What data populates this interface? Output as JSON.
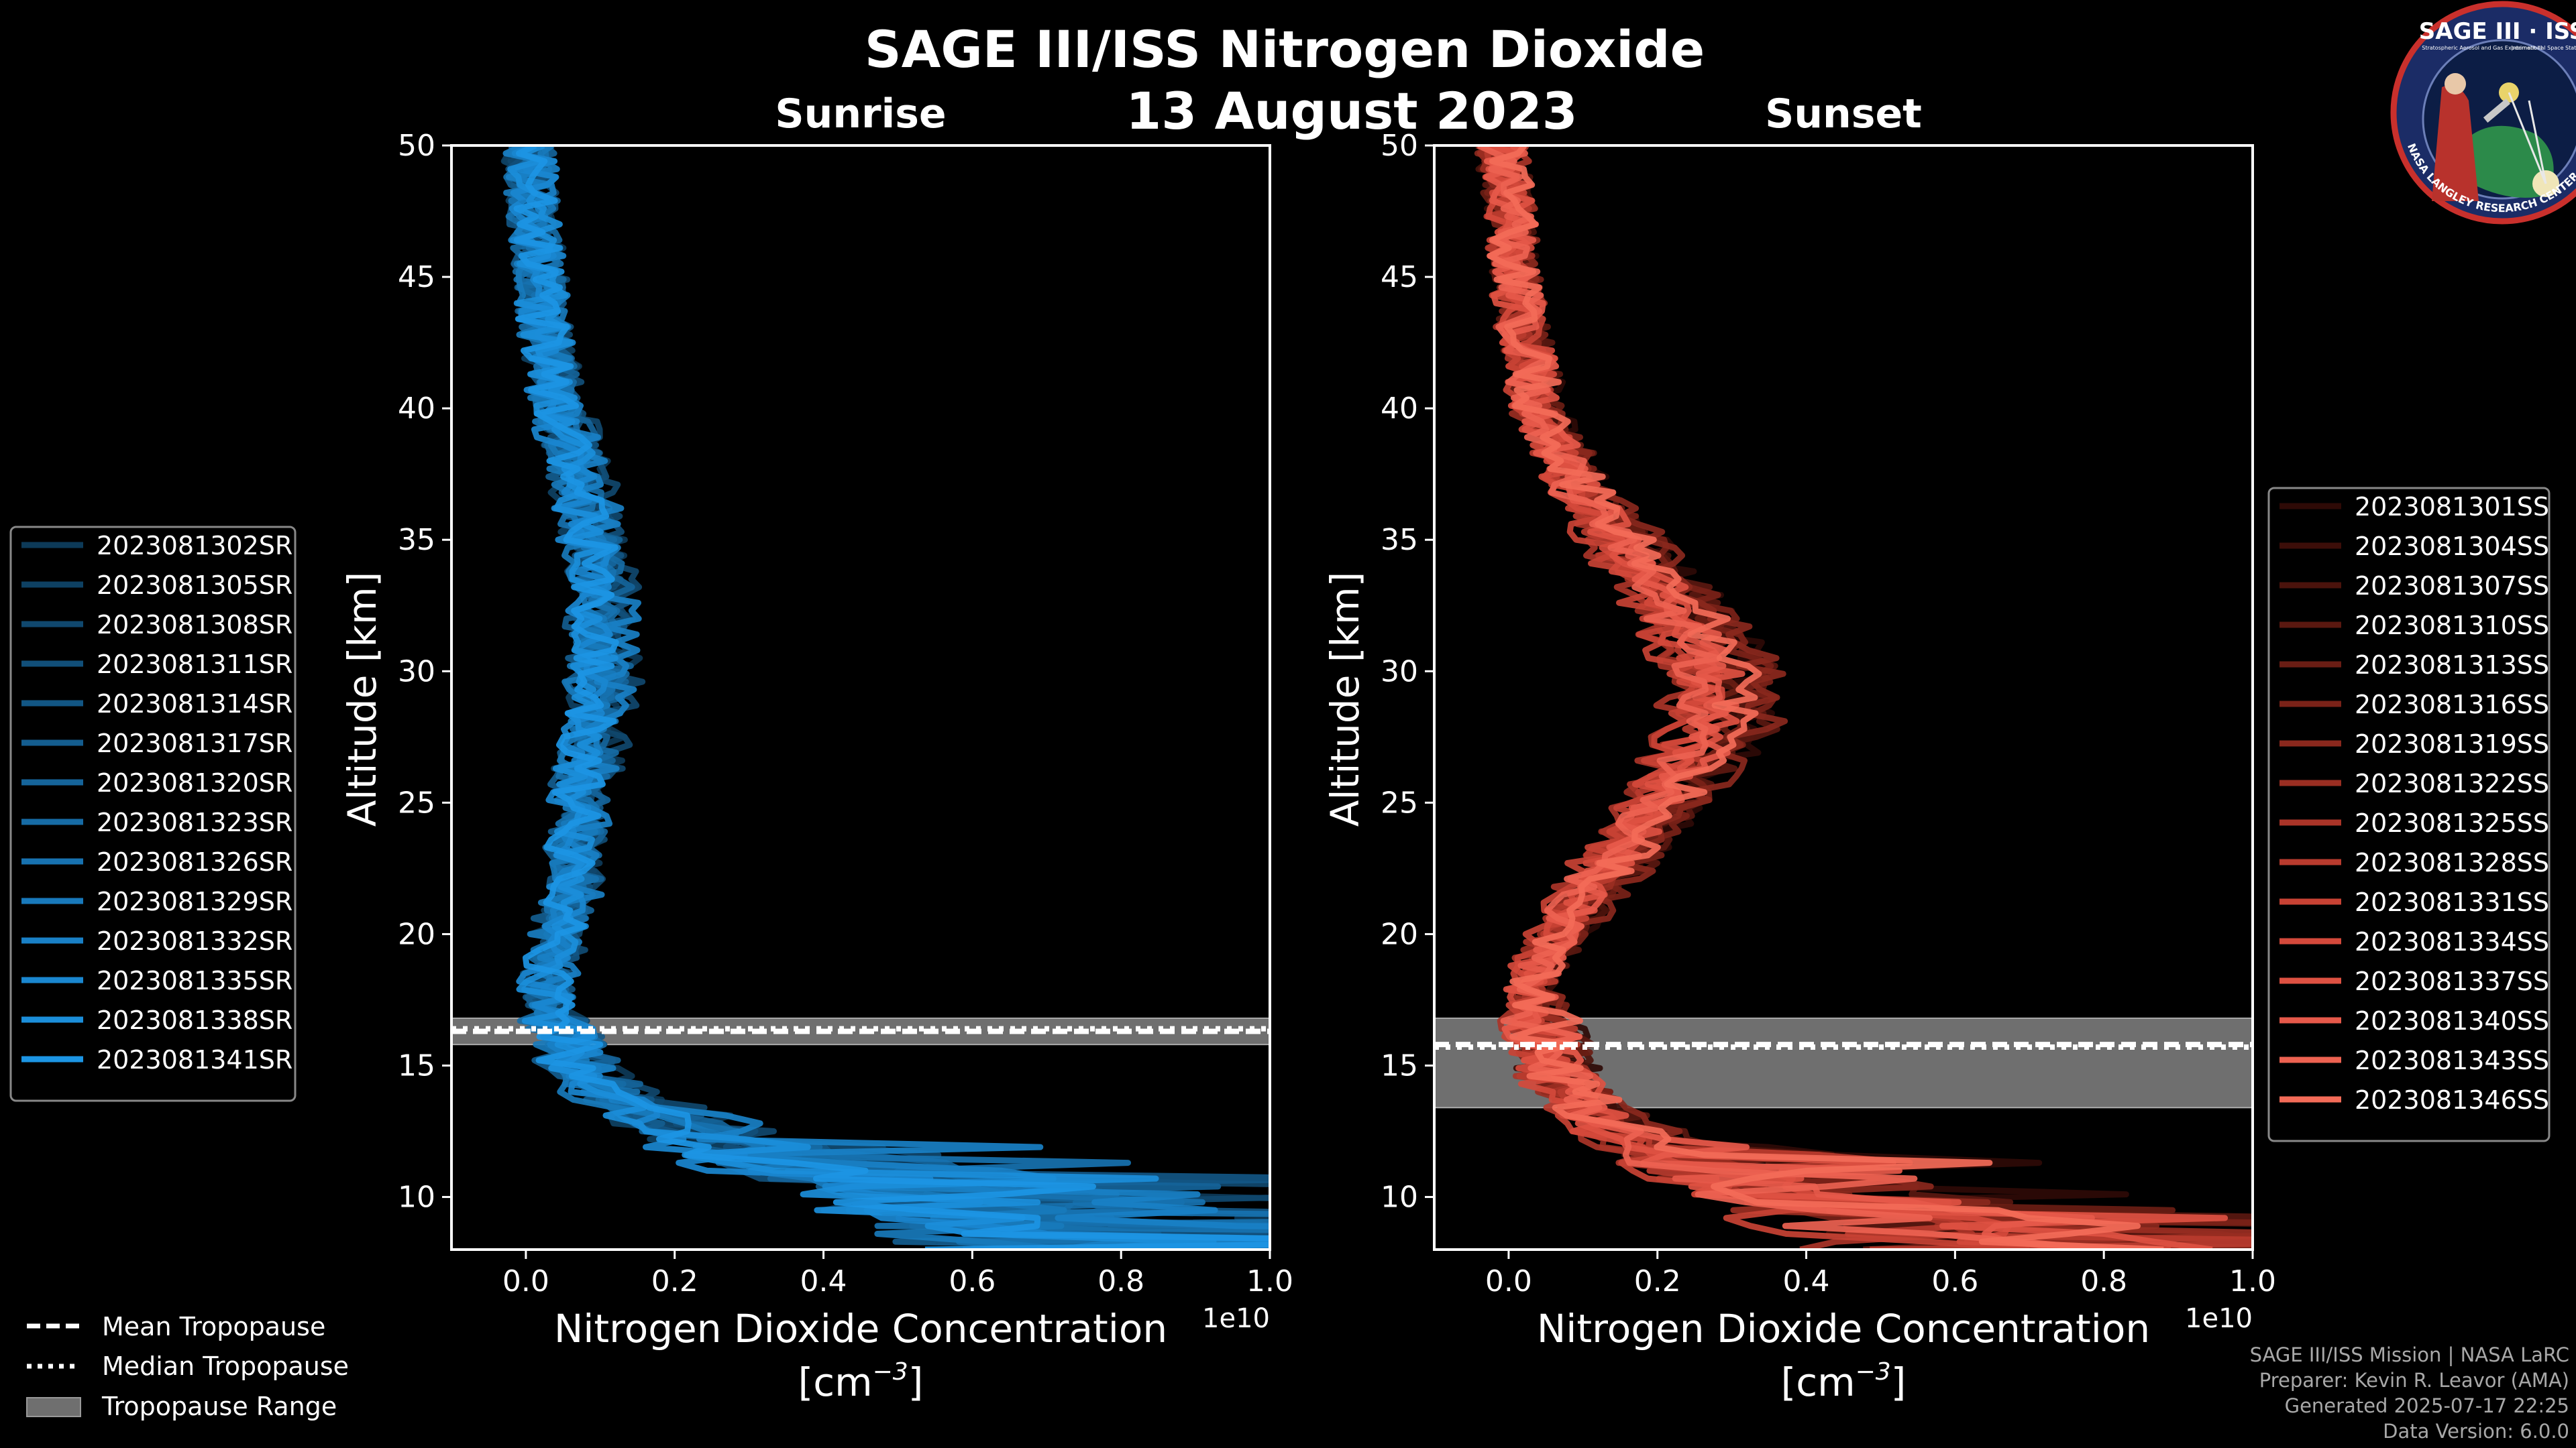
{
  "title": "SAGE III/ISS Nitrogen Dioxide",
  "date": "13 August 2023",
  "logo": {
    "top_text": "SAGE III · ISS",
    "small_left": "Stratospheric Aerosol and Gas Experiment III",
    "small_right": "International Space Station",
    "ring_text": "BALL · NASA LANGLEY RESEARCH CENTER · TAS-I · ESA"
  },
  "chart_data": [
    {
      "id": "sunrise",
      "type": "line",
      "title": "Sunrise",
      "xlabel": "Nitrogen Dioxide Concentration",
      "xlabel_units": "[cm",
      "xlabel_exp": "−3",
      "xlabel_close": "]",
      "ylabel": "Altitude [km]",
      "xlim": [
        -0.1,
        1.0
      ],
      "ylim": [
        8,
        50
      ],
      "x_scale_label": "1e10",
      "xticks": [
        0.0,
        0.2,
        0.4,
        0.6,
        0.8,
        1.0
      ],
      "xtick_labels": [
        "0.0",
        "0.2",
        "0.4",
        "0.6",
        "0.8",
        "1.0"
      ],
      "yticks": [
        10,
        15,
        20,
        25,
        30,
        35,
        40,
        45,
        50
      ],
      "ytick_labels": [
        "10",
        "15",
        "20",
        "25",
        "30",
        "35",
        "40",
        "45",
        "50"
      ],
      "base_profile": {
        "alt": [
          8,
          9,
          10,
          11,
          12,
          13,
          14,
          15,
          16,
          17,
          18,
          19,
          20,
          22,
          25,
          28,
          30,
          33,
          35,
          38,
          40,
          43,
          45,
          48,
          50
        ],
        "value": [
          0.9,
          0.8,
          0.6,
          0.45,
          0.3,
          0.2,
          0.12,
          0.08,
          0.06,
          0.04,
          0.03,
          0.04,
          0.05,
          0.07,
          0.08,
          0.1,
          0.11,
          0.11,
          0.1,
          0.07,
          0.05,
          0.03,
          0.02,
          0.01,
          0.005
        ]
      },
      "tropopause": {
        "mean": 16.3,
        "median": 16.4,
        "range": [
          15.8,
          16.8
        ]
      },
      "legend": {
        "position": "left",
        "series": [
          {
            "name": "2023081302SR",
            "color": "#0d3a58"
          },
          {
            "name": "2023081305SR",
            "color": "#0e4163"
          },
          {
            "name": "2023081308SR",
            "color": "#10486e"
          },
          {
            "name": "2023081311SR",
            "color": "#114f79"
          },
          {
            "name": "2023081314SR",
            "color": "#125684"
          },
          {
            "name": "2023081317SR",
            "color": "#145d8f"
          },
          {
            "name": "2023081320SR",
            "color": "#15649a"
          },
          {
            "name": "2023081323SR",
            "color": "#166ba5"
          },
          {
            "name": "2023081326SR",
            "color": "#1772b0"
          },
          {
            "name": "2023081329SR",
            "color": "#1879bb"
          },
          {
            "name": "2023081332SR",
            "color": "#1980c6"
          },
          {
            "name": "2023081335SR",
            "color": "#1a87d0"
          },
          {
            "name": "2023081338SR",
            "color": "#1b8eda"
          },
          {
            "name": "2023081341SR",
            "color": "#1c95e4"
          }
        ]
      }
    },
    {
      "id": "sunset",
      "type": "line",
      "title": "Sunset",
      "xlabel": "Nitrogen Dioxide Concentration",
      "xlabel_units": "[cm",
      "xlabel_exp": "−3",
      "xlabel_close": "]",
      "ylabel": "Altitude [km]",
      "xlim": [
        -0.1,
        1.0
      ],
      "ylim": [
        8,
        50
      ],
      "x_scale_label": "1e10",
      "xticks": [
        0.0,
        0.2,
        0.4,
        0.6,
        0.8,
        1.0
      ],
      "xtick_labels": [
        "0.0",
        "0.2",
        "0.4",
        "0.6",
        "0.8",
        "1.0"
      ],
      "yticks": [
        10,
        15,
        20,
        25,
        30,
        35,
        40,
        45,
        50
      ],
      "ytick_labels": [
        "10",
        "15",
        "20",
        "25",
        "30",
        "35",
        "40",
        "45",
        "50"
      ],
      "base_profile": {
        "alt": [
          8,
          9,
          10,
          11,
          12,
          13,
          14,
          15,
          16,
          17,
          18,
          19,
          20,
          22,
          25,
          27,
          28,
          30,
          32,
          35,
          37,
          40,
          43,
          45,
          48,
          50
        ],
        "value": [
          0.7,
          0.55,
          0.4,
          0.28,
          0.18,
          0.12,
          0.08,
          0.06,
          0.05,
          0.04,
          0.03,
          0.04,
          0.07,
          0.12,
          0.2,
          0.26,
          0.28,
          0.28,
          0.24,
          0.15,
          0.09,
          0.04,
          0.02,
          0.01,
          0.0,
          -0.01
        ]
      },
      "tropopause": {
        "mean": 15.8,
        "median": 15.7,
        "range": [
          13.4,
          16.8
        ]
      },
      "legend": {
        "position": "right",
        "series": [
          {
            "name": "2023081301SS",
            "color": "#2e0a06"
          },
          {
            "name": "2023081304SS",
            "color": "#3c0e09"
          },
          {
            "name": "2023081307SS",
            "color": "#4b130c"
          },
          {
            "name": "2023081310SS",
            "color": "#5a1810"
          },
          {
            "name": "2023081313SS",
            "color": "#6a1d14"
          },
          {
            "name": "2023081316SS",
            "color": "#7a2218"
          },
          {
            "name": "2023081319SS",
            "color": "#8a281d"
          },
          {
            "name": "2023081322SS",
            "color": "#9a2e22"
          },
          {
            "name": "2023081325SS",
            "color": "#aa3428"
          },
          {
            "name": "2023081328SS",
            "color": "#b93b2e"
          },
          {
            "name": "2023081331SS",
            "color": "#c84234"
          },
          {
            "name": "2023081334SS",
            "color": "#d4493b"
          },
          {
            "name": "2023081337SS",
            "color": "#de5142"
          },
          {
            "name": "2023081340SS",
            "color": "#e6594a"
          },
          {
            "name": "2023081343SS",
            "color": "#ed6251"
          },
          {
            "name": "2023081346SS",
            "color": "#f36b58"
          }
        ]
      }
    }
  ],
  "tropopause_legend": {
    "mean_label": "Mean Tropopause",
    "median_label": "Median Tropopause",
    "range_label": "Tropopause Range",
    "range_color": "#6f6f6f"
  },
  "credits": {
    "line1": "SAGE III/ISS Mission | NASA LaRC",
    "line2": "Preparer: Kevin R. Leavor (AMA)",
    "line3": "Generated 2025-07-17 22:25",
    "line4": "Data Version: 6.0.0"
  }
}
